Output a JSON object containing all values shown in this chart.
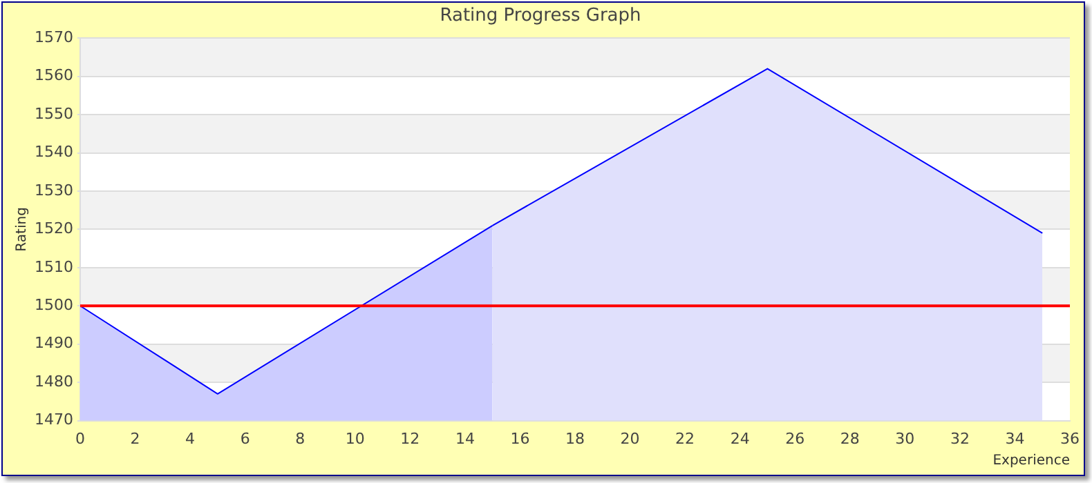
{
  "chart_data": {
    "type": "area",
    "title": "Rating Progress Graph",
    "xlabel": "Experience",
    "ylabel": "Rating",
    "series": [
      {
        "color": "#ccccff",
        "x": [
          0,
          5,
          15
        ],
        "values": [
          1500,
          1477,
          1521
        ]
      },
      {
        "color": "#e0e0fc",
        "x": [
          15,
          25,
          35
        ],
        "values": [
          1521,
          1562,
          1519
        ]
      }
    ],
    "xlim": [
      0,
      36
    ],
    "xticks": [
      0,
      2,
      4,
      6,
      8,
      10,
      12,
      14,
      16,
      18,
      20,
      22,
      24,
      26,
      28,
      30,
      32,
      34,
      36
    ],
    "ylim": [
      1470,
      1570
    ],
    "yticks": [
      1470,
      1480,
      1490,
      1500,
      1510,
      1520,
      1530,
      1540,
      1550,
      1560,
      1570
    ],
    "grid": "y",
    "legend": false,
    "ref_lines": [
      {
        "axis": "y",
        "value": 1500,
        "color": "#ff0000"
      }
    ]
  }
}
